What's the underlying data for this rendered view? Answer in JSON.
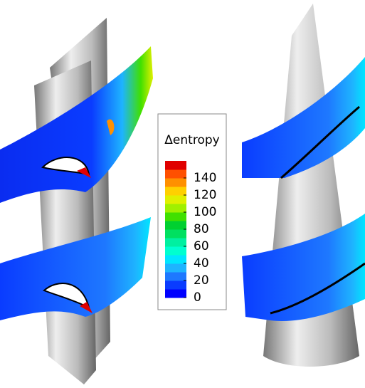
{
  "legend": {
    "title": "Δentropy",
    "range": [
      0,
      160
    ],
    "ticks": [
      0,
      20,
      40,
      60,
      80,
      100,
      120,
      140
    ],
    "colors": [
      "#0000ff",
      "#0a3cff",
      "#1e78ff",
      "#1eb4ff",
      "#00e6ff",
      "#00ffd0",
      "#00f0a0",
      "#00e060",
      "#00d030",
      "#40e000",
      "#a0f000",
      "#e0f000",
      "#ffd000",
      "#ff9000",
      "#ff5000",
      "#e00000"
    ]
  }
}
